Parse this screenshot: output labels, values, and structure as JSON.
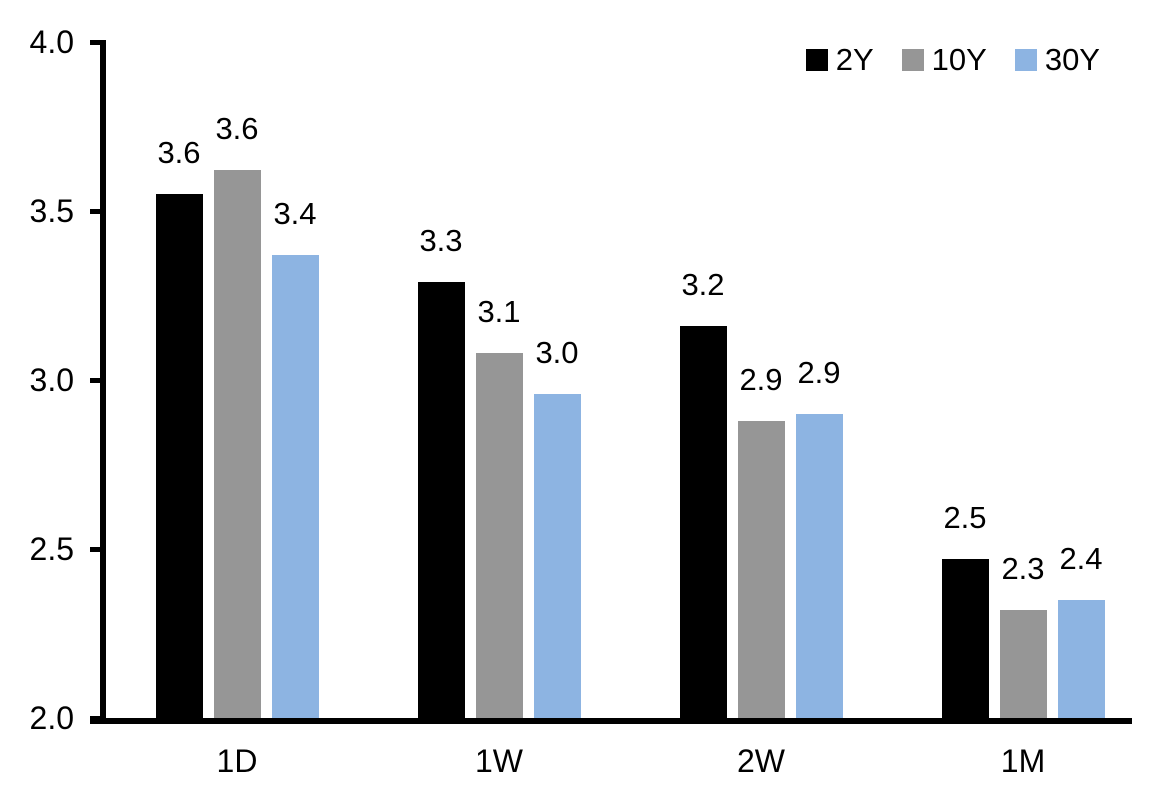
{
  "chart_data": {
    "type": "bar",
    "title": "",
    "xlabel": "",
    "ylabel": "",
    "categories": [
      "1D",
      "1W",
      "2W",
      "1M"
    ],
    "series": [
      {
        "name": "2Y",
        "color": "#000000",
        "values": [
          3.55,
          3.29,
          3.16,
          2.47
        ],
        "value_labels": [
          "3.6",
          "3.3",
          "3.2",
          "2.5"
        ]
      },
      {
        "name": "10Y",
        "color": "#969696",
        "values": [
          3.62,
          3.08,
          2.88,
          2.32
        ],
        "value_labels": [
          "3.6",
          "3.1",
          "2.9",
          "2.3"
        ]
      },
      {
        "name": "30Y",
        "color": "#8DB4E2",
        "values": [
          3.37,
          2.96,
          2.9,
          2.35
        ],
        "value_labels": [
          "3.4",
          "3.0",
          "2.9",
          "2.4"
        ]
      }
    ],
    "ylim": [
      2.0,
      4.0
    ],
    "yticks": {
      "values": [
        4.0,
        3.5,
        3.0,
        2.5,
        2.0
      ],
      "labels": [
        "4.0",
        "3.5",
        "3.0",
        "2.5",
        "2.0"
      ]
    },
    "legend": {
      "position": "top-right",
      "entries": [
        "2Y",
        "10Y",
        "30Y"
      ]
    },
    "grid": false,
    "axis_color": "#000000",
    "background": "#FFFFFF"
  }
}
